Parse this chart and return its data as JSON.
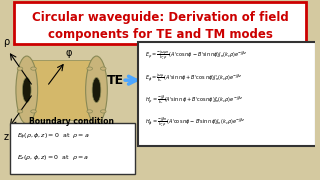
{
  "background_color": "#d4c9a0",
  "title_box_color": "#ffffff",
  "title_border_color": "#cc0000",
  "title_text1": "Circular waveguide: Derivation of field",
  "title_text2": "components for TE and TM modes",
  "title_color": "#cc0000",
  "title_fontsize": 8.5,
  "te_label": "TE",
  "te_arrow_color": "#4da6ff",
  "equation_box_bg": "#ffffff",
  "equation_box_border": "#333333",
  "boundary_title": "Boundary condition",
  "rho_label": "ρ",
  "phi_label": "φ",
  "z_label": "z",
  "waveguide_body_color": "#d4b86a",
  "waveguide_flange_color": "#c8b47a",
  "waveguide_edge_color": "#888855",
  "waveguide_hole_color": "#1a1a0a"
}
